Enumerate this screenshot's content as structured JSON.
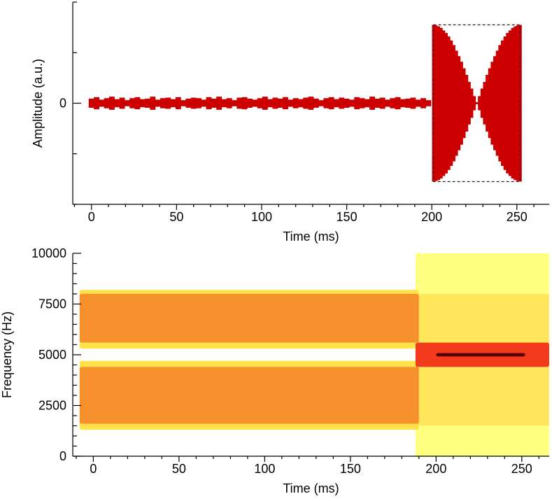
{
  "chart_data": [
    {
      "type": "waveform",
      "xlabel": "Time (ms)",
      "ylabel": "Amplitude (a.u.)",
      "color": "#cc0000",
      "xlim": [
        -11,
        269
      ],
      "xticks": [
        0,
        50,
        100,
        150,
        200,
        250
      ],
      "xminorticks": [
        -10,
        10,
        20,
        30,
        40,
        60,
        70,
        80,
        90,
        110,
        120,
        130,
        140,
        160,
        170,
        180,
        190,
        210,
        220,
        230,
        240,
        260
      ],
      "ylim": [
        -2,
        2
      ],
      "yticks": [
        0
      ],
      "yminorticks": [
        -2,
        -1,
        1,
        2
      ],
      "x": [
        0,
        3,
        6,
        9,
        12,
        15,
        18,
        21,
        24,
        27,
        30,
        33,
        36,
        39,
        42,
        45,
        48,
        51,
        54,
        57,
        60,
        63,
        66,
        69,
        72,
        75,
        78,
        81,
        84,
        87,
        90,
        93,
        96,
        99,
        102,
        105,
        108,
        111,
        114,
        117,
        120,
        123,
        126,
        129,
        132,
        135,
        138,
        141,
        144,
        147,
        150,
        153,
        156,
        159,
        162,
        165,
        168,
        171,
        174,
        177,
        180,
        183,
        186,
        189,
        192,
        195,
        198,
        201,
        202.5,
        204,
        205.5,
        207,
        208.5,
        210,
        211.5,
        213,
        214.5,
        216,
        217.5,
        219,
        220.5,
        222,
        223.5,
        225,
        226.5,
        228,
        229.5,
        231,
        232.5,
        234,
        235.5,
        237,
        238.5,
        240,
        241.5,
        243,
        244.5,
        246,
        247.5,
        249,
        250.5,
        252
      ],
      "values": [
        0.09,
        0.12,
        0.07,
        0.1,
        0.13,
        0.08,
        0.11,
        0.06,
        0.1,
        0.12,
        0.08,
        0.09,
        0.13,
        0.07,
        0.1,
        0.11,
        0.08,
        0.12,
        0.06,
        0.09,
        0.11,
        0.1,
        0.07,
        0.12,
        0.09,
        0.13,
        0.08,
        0.1,
        0.06,
        0.11,
        0.12,
        0.09,
        0.07,
        0.1,
        0.13,
        0.08,
        0.11,
        0.09,
        0.12,
        0.07,
        0.1,
        0.08,
        0.11,
        0.13,
        0.09,
        0.06,
        0.1,
        0.12,
        0.08,
        0.11,
        0.09,
        0.07,
        0.12,
        0.1,
        0.08,
        0.13,
        0.09,
        0.11,
        0.07,
        0.1,
        0.12,
        0.08,
        0.09,
        0.11,
        0.07,
        0.1,
        0.06,
        1.55,
        1.54,
        1.52,
        1.49,
        1.44,
        1.39,
        1.32,
        1.24,
        1.15,
        1.04,
        0.93,
        0.82,
        0.69,
        0.56,
        0.42,
        0.29,
        0.14,
        0.02,
        0.14,
        0.29,
        0.42,
        0.56,
        0.69,
        0.82,
        0.93,
        1.04,
        1.15,
        1.24,
        1.32,
        1.39,
        1.44,
        1.49,
        1.52,
        1.54,
        1.55
      ],
      "box": {
        "x": [
          201,
          252
        ],
        "y": [
          -1.55,
          1.55
        ]
      }
    },
    {
      "type": "spectrogram",
      "xlabel": "Time (ms)",
      "ylabel": "Frequency (Hz)",
      "xlim": [
        -12,
        266
      ],
      "xticks": [
        0,
        50,
        100,
        150,
        200,
        250
      ],
      "xminorticks": [
        -10,
        10,
        20,
        30,
        40,
        60,
        70,
        80,
        90,
        110,
        120,
        130,
        140,
        160,
        170,
        180,
        190,
        210,
        220,
        230,
        240,
        260
      ],
      "ylim": [
        0,
        10000
      ],
      "yticks": [
        0,
        2500,
        5000,
        7500,
        10000
      ],
      "yminorticks": [
        500,
        1000,
        1500,
        2000,
        3000,
        3500,
        4000,
        4500,
        5500,
        6000,
        6500,
        7000,
        8000,
        8500,
        9000,
        9500
      ],
      "regions": [
        {
          "x": [
            188,
            266
          ],
          "y": [
            0,
            10000
          ],
          "color": "#ffff80"
        },
        {
          "x": [
            -8,
            190
          ],
          "y": [
            5300,
            8200
          ],
          "color": "#ffe24a"
        },
        {
          "x": [
            -8,
            190
          ],
          "y": [
            5600,
            8000
          ],
          "color": "#f7912e"
        },
        {
          "x": [
            -8,
            190
          ],
          "y": [
            1300,
            4700
          ],
          "color": "#ffe24a"
        },
        {
          "x": [
            -8,
            190
          ],
          "y": [
            1600,
            4400
          ],
          "color": "#f7912e"
        },
        {
          "x": [
            190,
            266
          ],
          "y": [
            1500,
            8000
          ],
          "color": "#ffe65a"
        },
        {
          "x": [
            188,
            266
          ],
          "y": [
            4400,
            5600
          ],
          "color": "#f23b1c"
        },
        {
          "x": [
            200,
            252
          ],
          "y": [
            4920,
            5080
          ],
          "color": "#5a0000"
        }
      ]
    }
  ]
}
